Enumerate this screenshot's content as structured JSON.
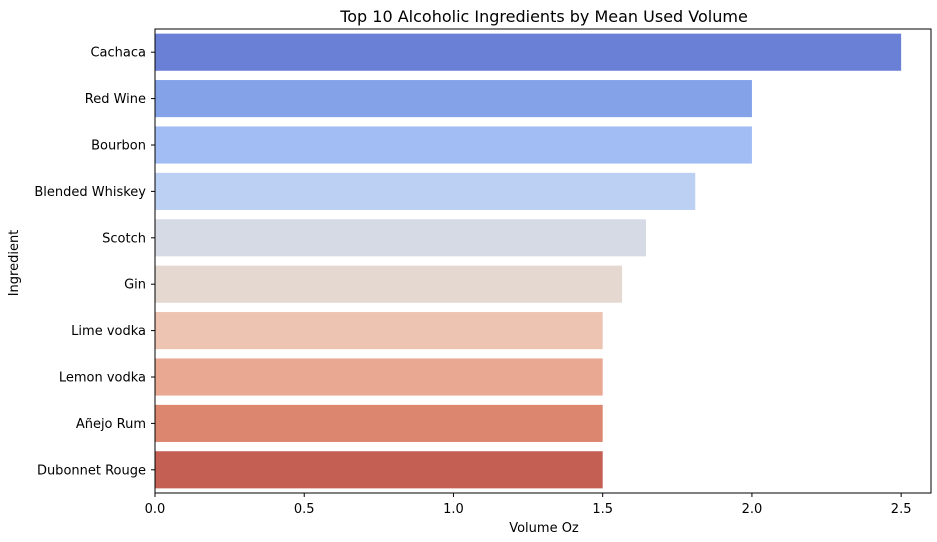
{
  "chart_data": {
    "type": "bar",
    "orientation": "horizontal",
    "title": "Top 10 Alcoholic Ingredients by Mean Used Volume",
    "xlabel": "Volume Oz",
    "ylabel": "Ingredient",
    "xlim": [
      0,
      2.6
    ],
    "xticks": [
      0.0,
      0.5,
      1.0,
      1.5,
      2.0,
      2.5
    ],
    "xtick_labels": [
      "0.0",
      "0.5",
      "1.0",
      "1.5",
      "2.0",
      "2.5"
    ],
    "categories": [
      "Cachaca",
      "Red Wine",
      "Bourbon",
      "Blended Whiskey",
      "Scotch",
      "Gin",
      "Lime vodka",
      "Lemon vodka",
      "Añejo Rum",
      "Dubonnet Rouge"
    ],
    "values": [
      2.5,
      2.0,
      2.0,
      1.81,
      1.645,
      1.565,
      1.5,
      1.5,
      1.5,
      1.5
    ],
    "colors": [
      "#6a80d6",
      "#84a2e8",
      "#a2bcf4",
      "#bbd0f2",
      "#d5dae5",
      "#e5d8d0",
      "#edc4b1",
      "#e8a891",
      "#dc8670",
      "#c45f54"
    ],
    "grid": false,
    "legend": null
  }
}
